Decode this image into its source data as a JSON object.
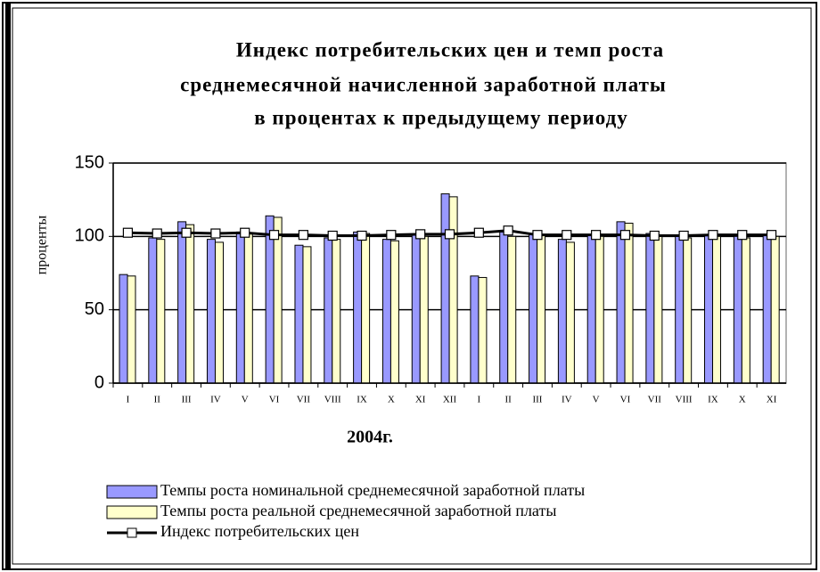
{
  "chart_data": {
    "type": "bar_line",
    "title": [
      "Индекс потребительских цен и темп роста",
      "среднемесячной начисленной заработной платы",
      "в процентах к предыдущему периоду"
    ],
    "y_label": "проценты",
    "x_label": "2004г.",
    "categories": [
      "I",
      "II",
      "III",
      "IV",
      "V",
      "VI",
      "VII",
      "VIII",
      "IX",
      "X",
      "XI",
      "XII",
      "I",
      "II",
      "III",
      "IV",
      "V",
      "VI",
      "VII",
      "VIII",
      "IX",
      "X",
      "XI"
    ],
    "series": [
      {
        "name": "Темпы роста номинальной среднемесячной заработной платы",
        "type": "bar",
        "color": "#9999ff",
        "values": [
          74,
          99,
          110,
          98,
          103,
          114,
          94,
          99,
          103,
          98,
          101,
          129,
          73,
          103,
          102,
          98,
          101,
          110,
          102,
          100,
          101,
          100,
          101
        ]
      },
      {
        "name": "Темпы роста реальной среднемесячной заработной платы",
        "type": "bar",
        "color": "#ffffcc",
        "values": [
          73,
          98,
          108,
          96,
          102,
          113,
          93,
          98,
          102,
          97,
          100,
          127,
          72,
          100,
          101,
          96,
          100,
          109,
          101,
          99,
          100,
          99,
          100
        ]
      },
      {
        "name": "Индекс потребительских цен",
        "type": "line",
        "color": "#000000",
        "values": [
          102.5,
          102,
          102.5,
          102,
          102.5,
          101,
          101,
          100.5,
          100.5,
          101,
          101.5,
          101.5,
          102.5,
          104,
          101,
          101,
          101,
          101,
          100.5,
          100.5,
          101,
          101,
          101
        ]
      }
    ],
    "ylim": [
      0,
      150
    ],
    "yticks": [
      0,
      50,
      100,
      150
    ],
    "grid": true
  }
}
